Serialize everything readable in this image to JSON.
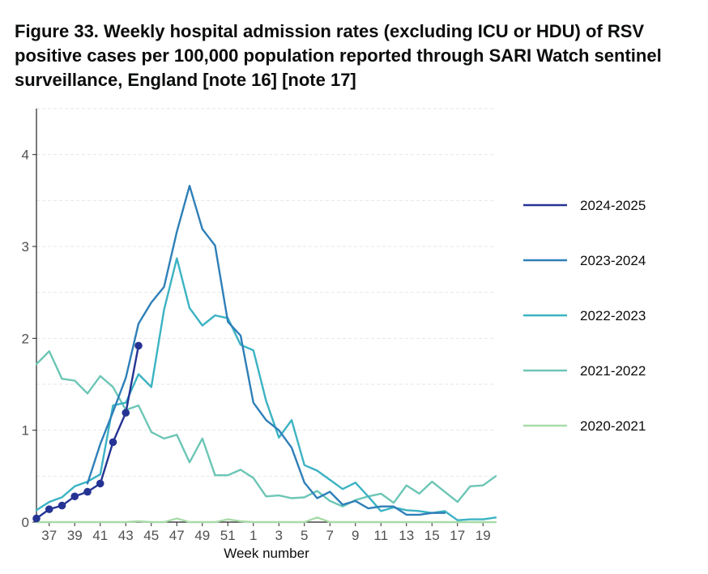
{
  "title": "Figure 33. Weekly hospital admission rates (excluding ICU or HDU) of RSV positive cases per 100,000 population reported through SARI Watch sentinel surveillance, England [note 16] [note 17]",
  "chart_data": {
    "type": "line",
    "xlabel": "Week number",
    "ylabel": "",
    "ylim": [
      0,
      4.5
    ],
    "yticks": [
      0,
      1,
      2,
      3,
      4
    ],
    "grid": true,
    "legend_position": "right",
    "weeks": [
      36,
      37,
      38,
      39,
      40,
      41,
      42,
      43,
      44,
      45,
      46,
      47,
      48,
      49,
      50,
      51,
      52,
      1,
      2,
      3,
      4,
      5,
      6,
      7,
      8,
      9,
      10,
      11,
      12,
      13,
      14,
      15,
      16,
      17,
      18,
      19,
      20
    ],
    "x_tick_labels": [
      "37",
      "39",
      "41",
      "43",
      "45",
      "47",
      "49",
      "51",
      "1",
      "3",
      "5",
      "7",
      "9",
      "11",
      "13",
      "15",
      "17",
      "19"
    ],
    "x_tick_indices": [
      1,
      3,
      5,
      7,
      9,
      11,
      13,
      15,
      17,
      19,
      21,
      23,
      25,
      27,
      29,
      31,
      33,
      35
    ],
    "series": [
      {
        "name": "2020-2021",
        "color": "#a8dba8",
        "markers": false,
        "values": [
          0.0,
          0.0,
          0.0,
          0.0,
          0.0,
          0.0,
          0.0,
          0.0,
          0.01,
          0.0,
          0.0,
          0.04,
          0.0,
          0.0,
          0.0,
          0.03,
          0.01,
          0.0,
          0.0,
          0.0,
          0.0,
          0.0,
          0.05,
          0.0,
          0.0,
          0.0,
          0.0,
          0.0,
          0.0,
          0.0,
          0.0,
          0.0,
          0.0,
          0.0,
          0.0,
          0.0,
          0.0
        ]
      },
      {
        "name": "2021-2022",
        "color": "#6cc6b5",
        "markers": false,
        "values": [
          1.72,
          1.86,
          1.56,
          1.54,
          1.4,
          1.59,
          1.47,
          1.22,
          1.27,
          0.98,
          0.91,
          0.95,
          0.65,
          0.91,
          0.51,
          0.51,
          0.57,
          0.48,
          0.28,
          0.29,
          0.26,
          0.27,
          0.34,
          0.23,
          0.17,
          0.24,
          0.28,
          0.31,
          0.21,
          0.4,
          0.31,
          0.44,
          0.33,
          0.22,
          0.39,
          0.4,
          0.5
        ]
      },
      {
        "name": "2022-2023",
        "color": "#3bb3c3",
        "markers": false,
        "values": [
          0.13,
          0.22,
          0.27,
          0.39,
          0.44,
          0.52,
          1.27,
          1.3,
          1.61,
          1.47,
          2.31,
          2.87,
          2.33,
          2.14,
          2.25,
          2.22,
          1.93,
          1.87,
          1.32,
          0.92,
          1.11,
          0.62,
          0.56,
          0.46,
          0.36,
          0.43,
          0.28,
          0.12,
          0.16,
          0.13,
          0.12,
          0.1,
          0.12,
          0.02,
          0.03,
          0.03,
          0.05
        ]
      },
      {
        "name": "2023-2024",
        "color": "#2e7fb8",
        "markers": false,
        "values": [
          null,
          null,
          null,
          null,
          0.42,
          0.85,
          1.2,
          1.57,
          2.16,
          2.39,
          2.56,
          3.16,
          3.66,
          3.19,
          3.01,
          2.18,
          2.03,
          1.3,
          1.11,
          1.0,
          0.81,
          0.43,
          0.26,
          0.33,
          0.19,
          0.23,
          0.15,
          0.17,
          0.17,
          0.08,
          0.08,
          0.1,
          0.1,
          null,
          null,
          null,
          null
        ]
      },
      {
        "name": "2024-2025",
        "color": "#253494",
        "markers": true,
        "values": [
          0.04,
          0.14,
          0.18,
          0.28,
          0.33,
          0.42,
          0.87,
          1.19,
          1.92,
          null,
          null,
          null,
          null,
          null,
          null,
          null,
          null,
          null,
          null,
          null,
          null,
          null,
          null,
          null,
          null,
          null,
          null,
          null,
          null,
          null,
          null,
          null,
          null,
          null,
          null,
          null,
          null
        ]
      }
    ]
  }
}
